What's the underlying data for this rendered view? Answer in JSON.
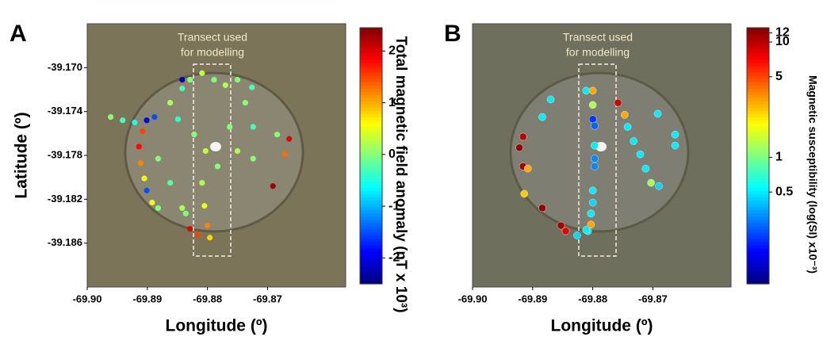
{
  "chart_data": [
    {
      "type": "scatter",
      "panel_label": "A",
      "annotation": [
        "Transect used",
        "for modelling"
      ],
      "x_label": "Longitude (º)",
      "y_label": "Latitude (º)",
      "xlim": [
        -69.9,
        -69.857
      ],
      "ylim": [
        -39.19,
        -39.166
      ],
      "xticks": [
        {
          "value": -69.9,
          "label": "-69.90"
        },
        -69.89,
        -69.88,
        -69.87
      ],
      "yticks": [
        {
          "value": -39.17,
          "label": "-39.170"
        },
        -39.174,
        -39.178,
        -39.182,
        -39.186
      ],
      "colorbar": {
        "label": "Total magnetic field anomaly (nT x 10³)",
        "lim": [
          -2.5,
          2.45
        ],
        "ticks": [
          2,
          1,
          0,
          -1,
          -2
        ],
        "log": false,
        "colormap": "jet"
      },
      "x": [
        -69.8961,
        -69.8941,
        -69.8921,
        -69.8901,
        -69.8888,
        -69.8908,
        -69.8914,
        -69.8911,
        -69.8905,
        -69.8901,
        -69.8892,
        -69.8882,
        -69.8862,
        -69.8842,
        -69.8829,
        -69.8809,
        -69.8789,
        -69.877,
        -69.875,
        -69.8726,
        -69.8737,
        -69.8849,
        -69.8822,
        -69.8803,
        -69.8783,
        -69.8809,
        -69.8805,
        -69.88,
        -69.8816,
        -69.8829,
        -69.8763,
        -69.8724,
        -69.8684,
        -69.8664,
        -69.8671,
        -69.8691,
        -69.8724,
        -69.875,
        -69.8882,
        -69.8862,
        -69.8842,
        -69.8796,
        -69.8836,
        -69.8842
      ],
      "y": [
        -39.1745,
        -39.1748,
        -39.175,
        -39.1748,
        -39.1745,
        -39.1758,
        -39.1772,
        -39.1787,
        -39.1801,
        -39.1812,
        -39.1823,
        -39.1828,
        -39.1732,
        -39.1719,
        -39.1711,
        -39.1705,
        -39.1711,
        -39.1716,
        -39.1711,
        -39.1718,
        -39.1732,
        -39.1747,
        -39.1761,
        -39.1776,
        -39.179,
        -39.1805,
        -39.1826,
        -39.1844,
        -39.1852,
        -39.1847,
        -39.1754,
        -39.1754,
        -39.1761,
        -39.1765,
        -39.1779,
        -39.1808,
        -39.1783,
        -39.1776,
        -39.1783,
        -39.1805,
        -39.1828,
        -39.1855,
        -39.1833,
        -39.1711
      ],
      "values": [
        0,
        -0.3,
        -0.5,
        -2,
        -1.5,
        1.5,
        1.8,
        1.2,
        0.5,
        -1.5,
        0.5,
        0,
        0.2,
        -0.3,
        0,
        0.3,
        0,
        0.2,
        0,
        -0.3,
        0,
        -0.4,
        0,
        0.3,
        0,
        0.2,
        0.5,
        1.2,
        1.5,
        2,
        0,
        -0.3,
        0,
        2,
        1.3,
        2.3,
        0,
        0.2,
        0,
        -0.2,
        0.2,
        0.8,
        0,
        -2.3
      ]
    },
    {
      "type": "scatter",
      "panel_label": "B",
      "annotation": [
        "Transect used",
        "for modelling"
      ],
      "x_label": "Longitude (º)",
      "xlim": [
        -69.9,
        -69.857
      ],
      "ylim": [
        -39.19,
        -39.166
      ],
      "xticks": [
        {
          "value": -69.9,
          "label": "-69.90"
        },
        -69.89,
        -69.88,
        -69.87
      ],
      "colorbar": {
        "label": "Magnetic susceptibility (log(SI) x10⁻³)",
        "lim": [
          0.08,
          13.3
        ],
        "ticks": [
          12,
          10,
          5,
          1,
          0.5
        ],
        "log": true,
        "colormap": "jet"
      },
      "x": [
        -69.887,
        -69.8884,
        -69.8916,
        -69.8922,
        -69.8916,
        -69.8908,
        -69.8914,
        -69.8884,
        -69.8853,
        -69.8845,
        -69.8826,
        -69.8808,
        -69.8811,
        -69.88,
        -69.88,
        -69.88,
        -69.8797,
        -69.8797,
        -69.8797,
        -69.8797,
        -69.88,
        -69.88,
        -69.8803,
        -69.8803,
        -69.8811,
        -69.8758,
        -69.8747,
        -69.8742,
        -69.8732,
        -69.8721,
        -69.8712,
        -69.8703,
        -69.869,
        -69.8692,
        -69.8663,
        -69.8663
      ],
      "y": [
        -39.1729,
        -39.1745,
        -39.1763,
        -39.1773,
        -39.179,
        -39.1792,
        -39.1815,
        -39.1828,
        -39.1844,
        -39.1849,
        -39.1853,
        -39.1849,
        -39.1721,
        -39.1721,
        -39.1734,
        -39.1747,
        -39.1753,
        -39.1771,
        -39.1783,
        -39.179,
        -39.1812,
        -39.1823,
        -39.1833,
        -39.1843,
        -39.1848,
        -39.1732,
        -39.1743,
        -39.1754,
        -39.1767,
        -39.1779,
        -39.1792,
        -39.1805,
        -39.1808,
        -39.1742,
        -39.1761,
        -39.1771
      ],
      "values": [
        0.5,
        0.5,
        10,
        12,
        11,
        3,
        2.5,
        12,
        11,
        8,
        0.45,
        0.5,
        0.5,
        3,
        1.3,
        0.2,
        0.25,
        0.5,
        0.3,
        0.3,
        0.5,
        0.45,
        0.5,
        3,
        0.5,
        9,
        3,
        0.5,
        0.5,
        0.5,
        0.5,
        1.2,
        0.45,
        0.5,
        0.5,
        0.5
      ]
    }
  ]
}
